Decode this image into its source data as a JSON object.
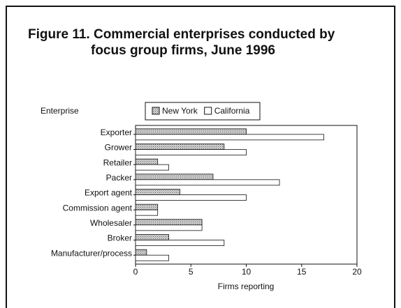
{
  "chart_data": {
    "type": "bar",
    "orientation": "horizontal",
    "title": [
      "Figure 11. Commercial enterprises conducted by",
      "focus group firms, June 1996"
    ],
    "y_label": "Enterprise",
    "x_label": "Firms reporting",
    "categories": [
      "Exporter",
      "Grower",
      "Retailer",
      "Packer",
      "Export agent",
      "Commission agent",
      "Wholesaler",
      "Broker",
      "Manufacturer/process"
    ],
    "series": [
      {
        "name": "New York",
        "color": "#a8a8a8",
        "values": [
          10,
          8,
          2,
          7,
          4,
          2,
          6,
          3,
          1
        ]
      },
      {
        "name": "California",
        "color": "#ffffff",
        "values": [
          17,
          10,
          3,
          13,
          10,
          2,
          6,
          8,
          3
        ]
      }
    ],
    "xlim": [
      0,
      20
    ],
    "xticks": [
      0,
      5,
      10,
      15,
      20
    ],
    "legend": "top"
  }
}
